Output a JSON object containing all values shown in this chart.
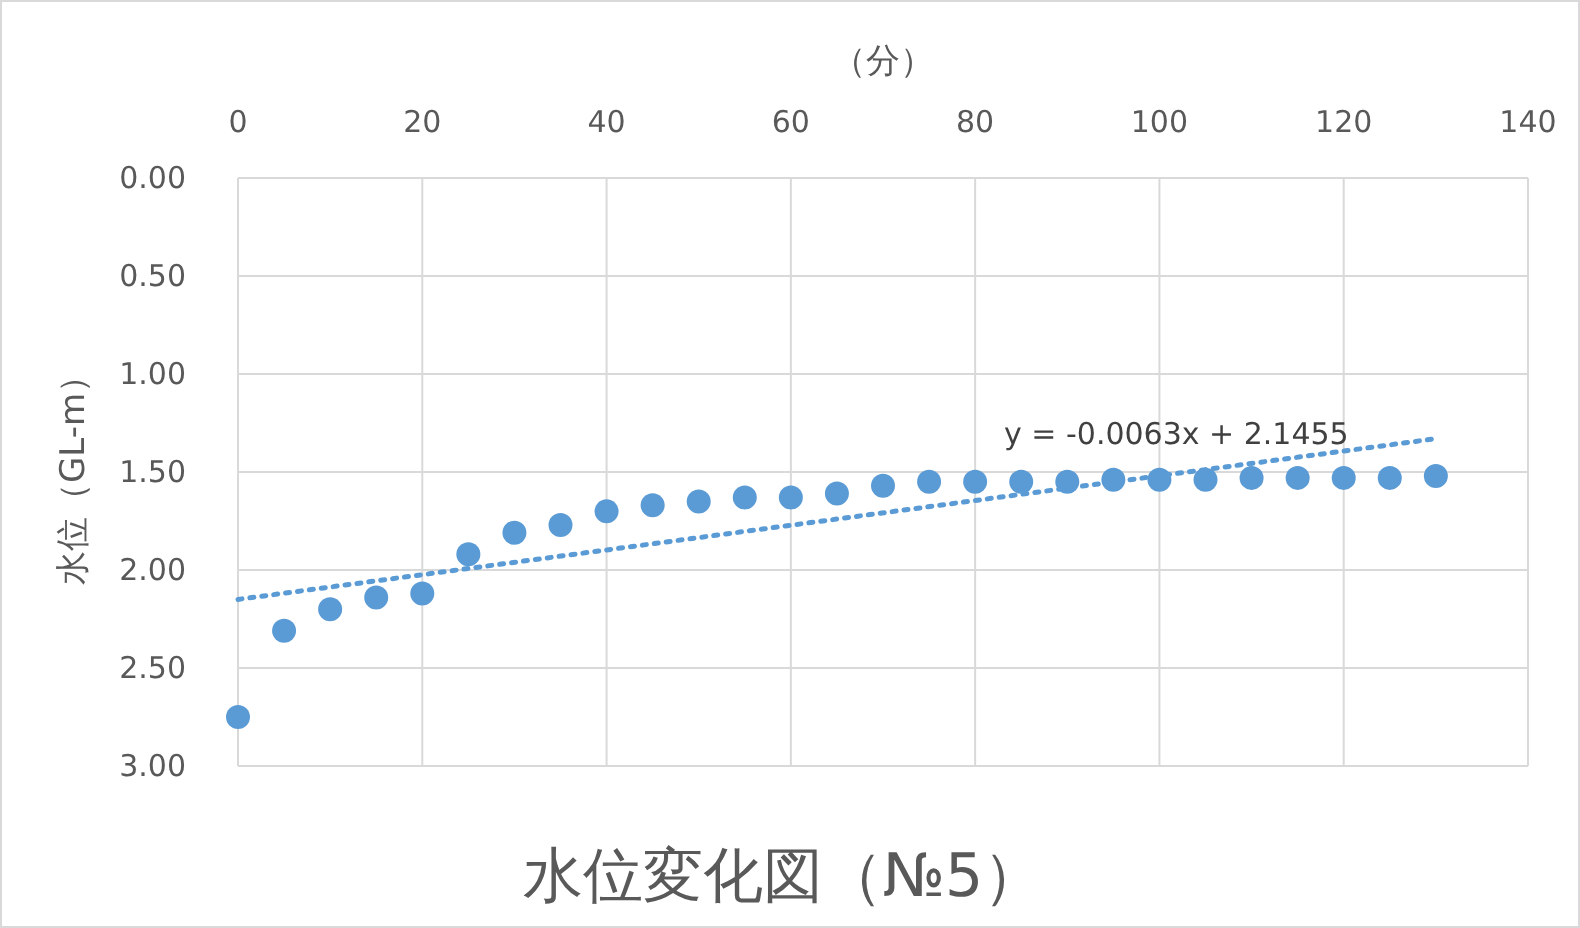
{
  "chart_data": {
    "type": "scatter",
    "title": "水位変化図（№5）",
    "xlabel": "（分）",
    "ylabel": "水位（GL-m）",
    "xlim": [
      0,
      140
    ],
    "xticks": [
      0,
      20,
      40,
      60,
      80,
      100,
      120,
      140
    ],
    "ylim": [
      3.0,
      0.0
    ],
    "yticks": [
      {
        "value": 0,
        "label": "0.00"
      },
      {
        "value": 0.5,
        "label": "0.50"
      },
      {
        "value": 1,
        "label": "1.00"
      },
      {
        "value": 1.5,
        "label": "1.50"
      },
      {
        "value": 2,
        "label": "2.00"
      },
      {
        "value": 2.5,
        "label": "2.50"
      },
      {
        "value": 3,
        "label": "3.00"
      }
    ],
    "grid": true,
    "marker": "circle",
    "series": [
      {
        "color": "#5b9bd5",
        "x": [
          0,
          5,
          10,
          15,
          20,
          25,
          30,
          35,
          40,
          45,
          50,
          55,
          60,
          65,
          70,
          75,
          80,
          85,
          90,
          95,
          100,
          105,
          110,
          115,
          120,
          125,
          130
        ],
        "values": [
          2.75,
          2.31,
          2.2,
          2.14,
          2.12,
          1.92,
          1.81,
          1.77,
          1.7,
          1.67,
          1.65,
          1.63,
          1.63,
          1.61,
          1.57,
          1.55,
          1.55,
          1.55,
          1.55,
          1.54,
          1.54,
          1.54,
          1.53,
          1.53,
          1.53,
          1.53,
          1.52
        ]
      },
      {
        "type": "line",
        "color": "#5b9bd5",
        "line_style": "dotted",
        "marker": "none",
        "x": [
          0,
          130
        ],
        "values": [
          2.15,
          1.33
        ]
      }
    ],
    "annotations": [
      "y = -0.0063x + 2.1455"
    ]
  }
}
